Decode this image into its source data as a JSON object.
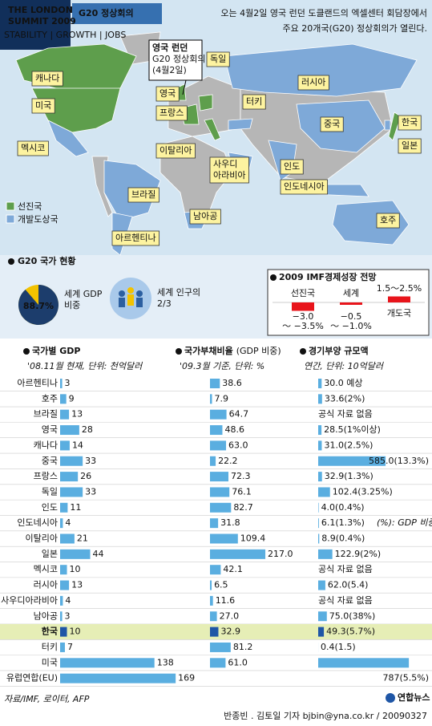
{
  "header": {
    "logo": [
      "THE LONDON",
      "SUMMIT 2009",
      "STABILITY | GROWTH | JOBS"
    ],
    "title": "G20 정상회의",
    "intro": [
      "오는 4월2일 영국 런던 도클랜드의 엑셀센터 회담장에서",
      "주요 20개국(G20) 정상회의가 열린다."
    ]
  },
  "map": {
    "callout": [
      "영국 런던",
      "G20 정상회의",
      "(4월2일)"
    ],
    "labels": [
      "캐나다",
      "미국",
      "멕시코",
      "브라질",
      "아르헨티나",
      "영국",
      "프랑스",
      "독일",
      "이탈리아",
      "터키",
      "러시아",
      [
        "사우디",
        "아라비아"
      ],
      "남아공",
      "인도",
      "중국",
      "한국",
      "일본",
      "인도네시아",
      "호주"
    ],
    "legend": [
      {
        "name": "선진국",
        "color": "#5e9e4c"
      },
      {
        "name": "개발도상국",
        "color": "#7ea9d8"
      }
    ]
  },
  "status": {
    "title": "G20 국가 현황",
    "gdp_share": {
      "value": 88.7,
      "value_label": "88.7%",
      "colors": [
        "#1c3d6c",
        "#f2c200"
      ],
      "label": [
        "세계 GDP",
        "비중"
      ]
    },
    "population": [
      "세계 인구의",
      "2/3"
    ]
  },
  "imf": {
    "title": "2009 IMF경제성장 전망",
    "color": "#e8141b",
    "items": [
      {
        "name": "선진국",
        "values": [
          -3.0,
          -3.5
        ],
        "value_labels": [
          "−3.0",
          "～ −3.5%"
        ]
      },
      {
        "name": "세계",
        "values": [
          -0.5,
          -1.0
        ],
        "value_labels": [
          "−0.5",
          "～ −1.0%"
        ]
      },
      {
        "name": "개도국",
        "values": [
          1.5,
          2.5
        ],
        "value_labels": [
          "1.5～2.5%"
        ]
      }
    ]
  },
  "table": {
    "highlight": "한국",
    "highlight_color": "#1f56a6",
    "highlight_row": "#e6eeb6",
    "note": "(%): GDP 비중",
    "source": "자료/IMF, 로이터, AFP"
  },
  "chart_data": [
    {
      "type": "bar",
      "title": "국가별 GDP",
      "subtitle": "'08.11월 현재, 단위: 천억달러",
      "color": "#5aaee0",
      "xlim": [
        0,
        170
      ],
      "categories": [
        "아르헨티나",
        "호주",
        "브라질",
        "영국",
        "캐나다",
        "중국",
        "프랑스",
        "독일",
        "인도",
        "인도네시아",
        "이탈리아",
        "일본",
        "멕시코",
        "러시아",
        "사우디아라비아",
        "남아공",
        "한국",
        "터키",
        "미국",
        "유럽연합(EU)"
      ],
      "values": [
        3,
        9,
        13,
        28,
        14,
        33,
        26,
        33,
        11,
        4,
        21,
        44,
        10,
        13,
        4,
        3,
        10,
        7,
        138,
        169
      ]
    },
    {
      "type": "bar",
      "title": "국가부채비율",
      "title_note": "(GDP 비중)",
      "subtitle": "'09.3월 기준, 단위: %",
      "color": "#5aaee0",
      "xlim": [
        0,
        220
      ],
      "values": [
        38.6,
        7.9,
        64.7,
        48.6,
        63.0,
        22.2,
        72.3,
        76.1,
        82.7,
        31.8,
        109.4,
        217.0,
        42.1,
        6.5,
        11.6,
        27.0,
        32.9,
        81.2,
        61.0,
        null
      ],
      "value_labels": [
        "38.6",
        "7.9",
        "64.7",
        "48.6",
        "63.0",
        "22.2",
        "72.3",
        "76.1",
        "82.7",
        "31.8",
        "109.4",
        "217.0",
        "42.1",
        "6.5",
        "11.6",
        "27.0",
        "32.9",
        "81.2",
        "61.0",
        null
      ]
    },
    {
      "type": "bar",
      "title": "경기부양 규모액",
      "subtitle": "연간, 단위: 10억달러",
      "color": "#5aaee0",
      "xlim": [
        0,
        800
      ],
      "values": [
        30.0,
        33.6,
        null,
        28.5,
        31.0,
        585.0,
        32.9,
        102.4,
        4.0,
        6.1,
        8.9,
        122.9,
        null,
        62.0,
        null,
        75.0,
        49.3,
        0.4,
        787,
        null
      ],
      "value_labels": [
        "30.0 예상",
        "33.6(2%)",
        "공식 자료 없음",
        "28.5(1%이상)",
        "31.0(2.5%)",
        "585.0(13.3%)",
        "32.9(1.3%)",
        "102.4(3.25%)",
        "4.0(0.4%)",
        "6.1(1.3%)",
        "8.9(0.4%)",
        "122.9(2%)",
        "공식 자료 없음",
        "62.0(5.4)",
        "공식 자료 없음",
        "75.0(38%)",
        "49.3(5.7%)",
        "0.4(1.5)",
        "787(5.5%)",
        null
      ]
    }
  ],
  "footer": {
    "credit": "반종빈 . 김토일 기자 bjbin@yna.co.kr / 20090327",
    "logo": "연합뉴스"
  }
}
